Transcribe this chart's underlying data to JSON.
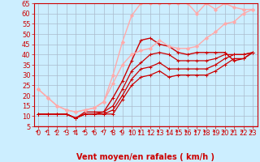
{
  "xlabel": "Vent moyen/en rafales ( km/h )",
  "ylabel": "",
  "bg_color": "#cceeff",
  "grid_color": "#aabbcc",
  "xlim": [
    -0.5,
    23.5
  ],
  "ylim": [
    5,
    65
  ],
  "yticks": [
    5,
    10,
    15,
    20,
    25,
    30,
    35,
    40,
    45,
    50,
    55,
    60,
    65
  ],
  "xticks": [
    0,
    1,
    2,
    3,
    4,
    5,
    6,
    7,
    8,
    9,
    10,
    11,
    12,
    13,
    14,
    15,
    16,
    17,
    18,
    19,
    20,
    21,
    22,
    23
  ],
  "series": [
    {
      "x": [
        0,
        1,
        2,
        3,
        4,
        5,
        6,
        7,
        8,
        9,
        10,
        11,
        12,
        13,
        14,
        15,
        16,
        17,
        18,
        19,
        20,
        21,
        22,
        23
      ],
      "y": [
        11,
        11,
        11,
        11,
        9,
        11,
        11,
        11,
        11,
        18,
        25,
        29,
        30,
        32,
        29,
        30,
        30,
        30,
        30,
        32,
        35,
        38,
        38,
        41
      ],
      "color": "#cc0000",
      "lw": 0.9,
      "marker": "+"
    },
    {
      "x": [
        0,
        1,
        2,
        3,
        4,
        5,
        6,
        7,
        8,
        9,
        10,
        11,
        12,
        13,
        14,
        15,
        16,
        17,
        18,
        19,
        20,
        21,
        22,
        23
      ],
      "y": [
        11,
        11,
        11,
        11,
        9,
        11,
        11,
        11,
        13,
        20,
        28,
        33,
        34,
        36,
        33,
        33,
        33,
        33,
        33,
        35,
        38,
        40,
        40,
        41
      ],
      "color": "#cc0000",
      "lw": 0.9,
      "marker": "+"
    },
    {
      "x": [
        0,
        1,
        2,
        3,
        4,
        5,
        6,
        7,
        8,
        9,
        10,
        11,
        12,
        13,
        14,
        15,
        16,
        17,
        18,
        19,
        20,
        21,
        22,
        23
      ],
      "y": [
        11,
        11,
        11,
        11,
        9,
        11,
        11,
        12,
        15,
        23,
        32,
        36,
        40,
        41,
        40,
        37,
        37,
        37,
        37,
        38,
        40,
        40,
        40,
        41
      ],
      "color": "#cc0000",
      "lw": 0.9,
      "marker": "+"
    },
    {
      "x": [
        0,
        1,
        2,
        3,
        4,
        5,
        6,
        7,
        8,
        9,
        10,
        11,
        12,
        13,
        14,
        15,
        16,
        17,
        18,
        19,
        20,
        21,
        22,
        23
      ],
      "y": [
        11,
        11,
        11,
        11,
        9,
        12,
        12,
        12,
        19,
        27,
        37,
        47,
        48,
        45,
        44,
        41,
        40,
        41,
        41,
        41,
        41,
        37,
        38,
        41
      ],
      "color": "#cc0000",
      "lw": 1.0,
      "marker": "+"
    },
    {
      "x": [
        0,
        1,
        2,
        3,
        4,
        5,
        6,
        7,
        8,
        9,
        10,
        11,
        12,
        13,
        14,
        15,
        16,
        17,
        18,
        19,
        20,
        21,
        22,
        23
      ],
      "y": [
        23,
        19,
        15,
        13,
        12,
        13,
        14,
        17,
        26,
        35,
        40,
        42,
        43,
        47,
        44,
        43,
        43,
        44,
        48,
        51,
        55,
        56,
        60,
        62
      ],
      "color": "#ffaaaa",
      "lw": 1.0,
      "marker": "D"
    },
    {
      "x": [
        0,
        1,
        2,
        3,
        4,
        5,
        6,
        7,
        8,
        9,
        10,
        11,
        12,
        13,
        14,
        15,
        16,
        17,
        18,
        19,
        20,
        21,
        22,
        23
      ],
      "y": [
        23,
        19,
        15,
        13,
        12,
        13,
        14,
        17,
        30,
        46,
        59,
        65,
        65,
        65,
        65,
        65,
        65,
        60,
        65,
        62,
        65,
        63,
        62,
        62
      ],
      "color": "#ffaaaa",
      "lw": 1.0,
      "marker": "D"
    }
  ],
  "arrow_color": "#cc0000",
  "xlabel_color": "#cc0000",
  "xlabel_fontsize": 7,
  "tick_fontsize": 6,
  "tick_color": "#cc0000"
}
